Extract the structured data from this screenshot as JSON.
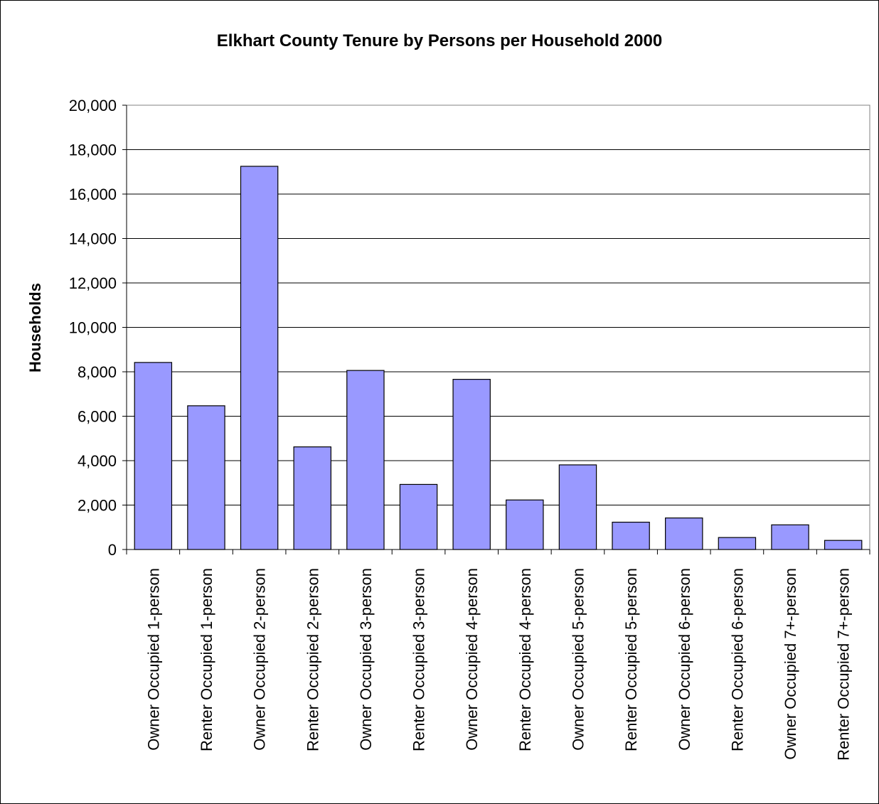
{
  "chart_data": {
    "type": "bar",
    "title": "Elkhart County Tenure by Persons per Household 2000",
    "xlabel": "",
    "ylabel": "Households",
    "ylim": [
      0,
      20000
    ],
    "yticks": [
      0,
      2000,
      4000,
      6000,
      8000,
      10000,
      12000,
      14000,
      16000,
      18000,
      20000
    ],
    "ytick_labels": [
      "0",
      "2,000",
      "4,000",
      "6,000",
      "8,000",
      "10,000",
      "12,000",
      "14,000",
      "16,000",
      "18,000",
      "20,000"
    ],
    "grid": true,
    "bar_color": "#9999ff",
    "categories": [
      "Owner Occupied 1-person",
      "Renter Occupied 1-person",
      "Owner Occupied 2-person",
      "Renter Occupied 2-person",
      "Owner Occupied 3-person",
      "Renter Occupied 3-person",
      "Owner Occupied 4-person",
      "Renter Occupied 4-person",
      "Owner Occupied 5-person",
      "Renter Occupied 5-person",
      "Owner Occupied 6-person",
      "Renter Occupied 6-person",
      "Owner Occupied 7+-person",
      "Renter Occupied 7+-person"
    ],
    "values": [
      8420,
      6470,
      17250,
      4620,
      8060,
      2930,
      7660,
      2230,
      3810,
      1230,
      1420,
      540,
      1110,
      410
    ]
  }
}
